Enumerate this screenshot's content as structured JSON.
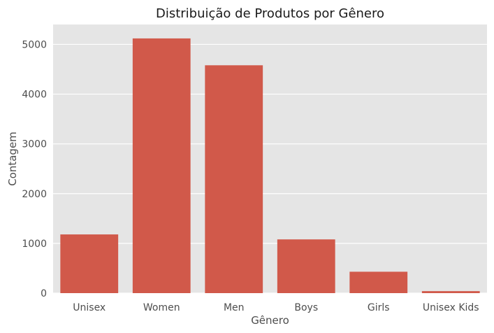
{
  "chart_data": {
    "type": "bar",
    "title": "Distribuição de Produtos por Gênero",
    "xlabel": "Gênero",
    "ylabel": "Contagem",
    "categories": [
      "Unisex",
      "Women",
      "Men",
      "Boys",
      "Girls",
      "Unisex Kids"
    ],
    "values": [
      1180,
      5120,
      4580,
      1080,
      430,
      40
    ],
    "ylim": [
      0,
      5400
    ],
    "yticks": [
      0,
      1000,
      2000,
      3000,
      4000,
      5000
    ],
    "grid": true,
    "legend": "none",
    "colors": {
      "bar": "#d1594a",
      "plot_background": "#e5e5e5",
      "grid": "#ffffff"
    }
  }
}
